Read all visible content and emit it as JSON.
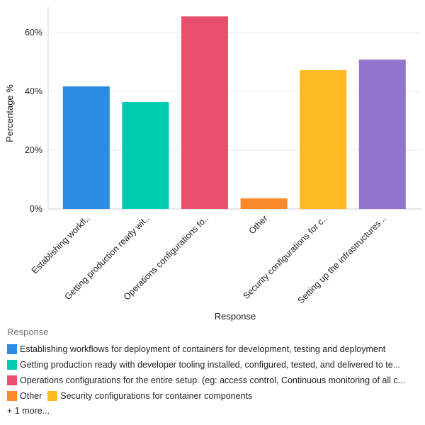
{
  "chart_data": {
    "type": "bar",
    "xlabel": "Response",
    "ylabel": "Percentage %",
    "ylim": [
      0,
      68
    ],
    "yticks": [
      0,
      20,
      40,
      60
    ],
    "ytick_labels": [
      "0%",
      "20%",
      "40%",
      "60%"
    ],
    "grid": true,
    "legend_placement": "bottom",
    "categories": [
      "Establishing workfl..",
      "Getting production ready wit..",
      "Operations configurations fo..",
      "Other",
      "Security configurations for c..",
      "Setting up the infrastructures .."
    ],
    "values": [
      41.7,
      36.4,
      65.5,
      3.6,
      47.2,
      50.8
    ],
    "colors": [
      "#2a8ce2",
      "#00ccb1",
      "#e8506e",
      "#f88a2c",
      "#fdba21",
      "#9174cc"
    ],
    "legend": {
      "title": "Response",
      "items": [
        "Establishing workflows for deployment of containers for development, testing and deployment",
        "Getting production ready with developer tooling installed, configured, tested, and delivered to te...",
        "Operations configurations for the entire setup. (eg: access control, Continuous monitoring of all c...",
        "Other",
        "Security configurations for container components"
      ],
      "more": "+ 1 more..."
    }
  }
}
